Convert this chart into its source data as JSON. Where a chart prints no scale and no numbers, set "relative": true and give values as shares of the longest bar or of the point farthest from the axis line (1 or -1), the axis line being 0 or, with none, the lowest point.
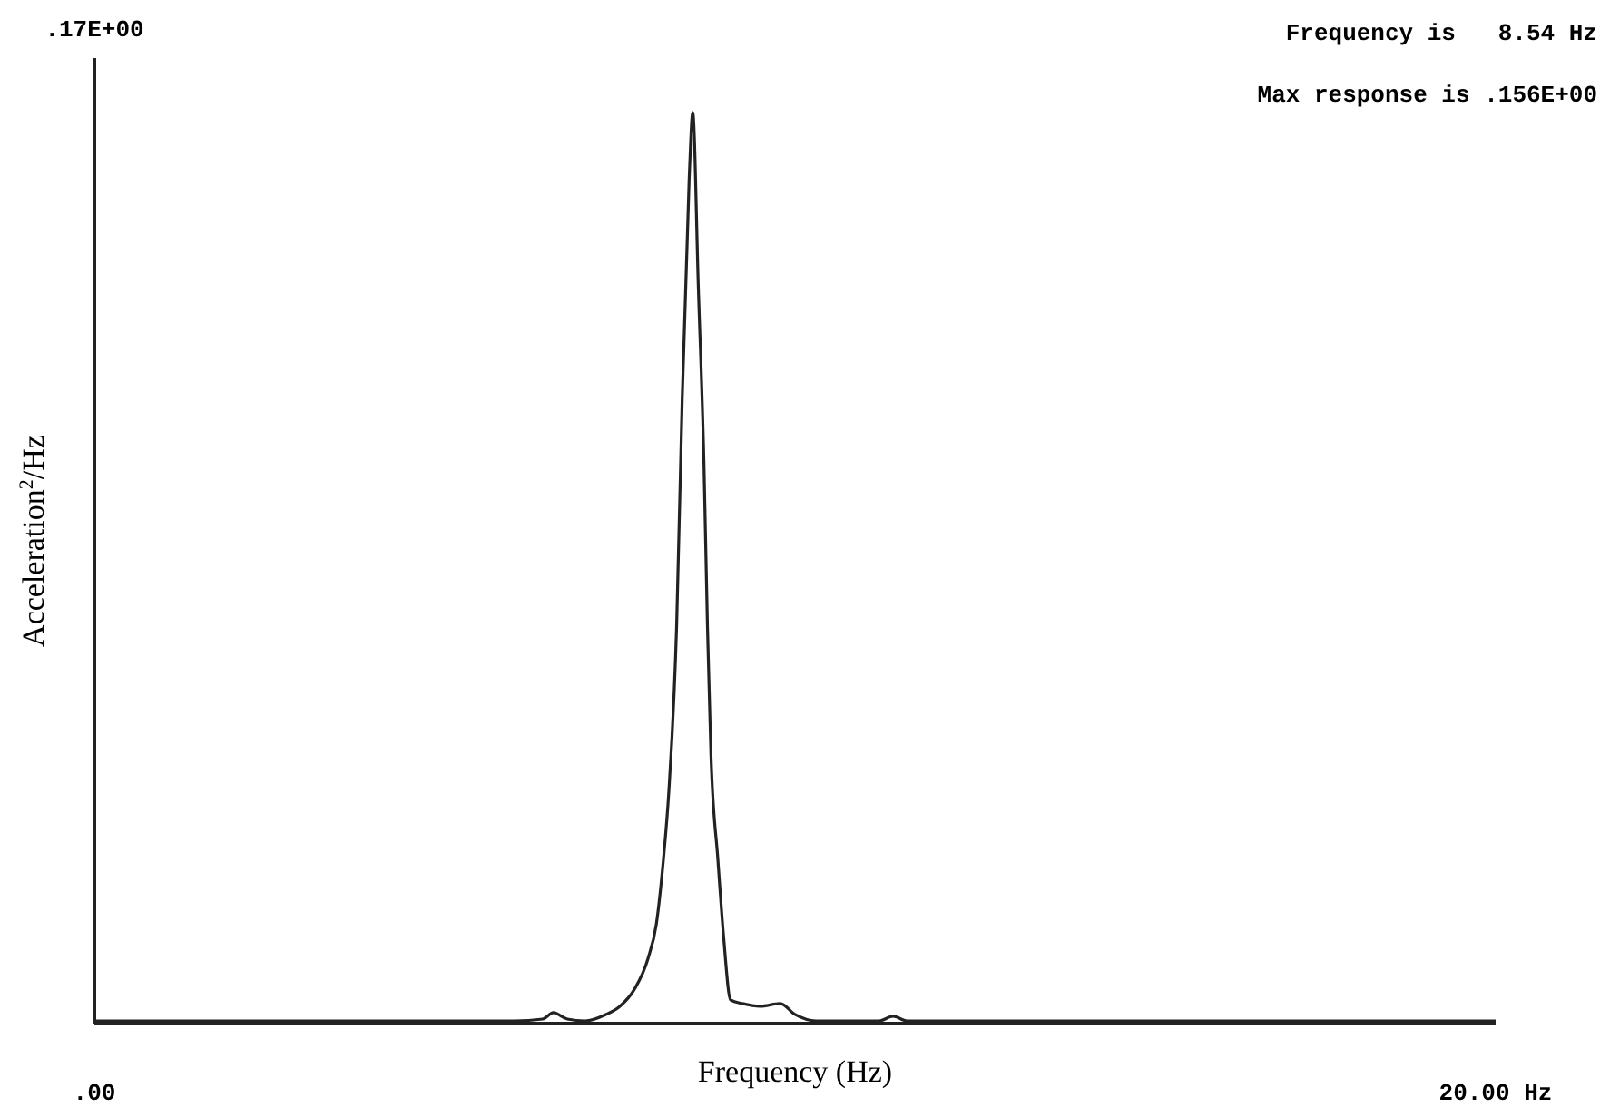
{
  "chart_data": {
    "type": "line",
    "relative": true,
    "xlabel": "Frequency (Hz)",
    "ylabel": "Acceleration$^{2}$/Hz",
    "annotations": [
      ".17E+00",
      "Frequency is   8.54 Hz",
      "Max response is .156E+00"
    ],
    "xlim": [
      0,
      20
    ],
    "xticks": [
      {
        "value": 0,
        "label": ".00"
      },
      {
        "value": 20,
        "label": "20.00 Hz"
      }
    ],
    "marker": "none",
    "line_style": "solid",
    "series": [
      {
        "color": "#222222",
        "x": [
          0,
          3,
          6,
          6.4,
          6.55,
          6.75,
          7.0,
          7.3,
          7.5,
          7.71,
          7.9,
          8.02,
          8.12,
          8.2,
          8.31,
          8.39,
          8.49,
          8.54,
          8.62,
          8.7,
          8.75,
          8.8,
          8.9,
          8.98,
          9.08,
          9.25,
          9.5,
          9.79,
          10.0,
          10.3,
          11.0,
          11.2,
          11.4,
          11.6,
          14,
          17,
          20
        ],
        "values": [
          0.003,
          0.003,
          0.003,
          0.005,
          0.012,
          0.005,
          0.003,
          0.01,
          0.019,
          0.038,
          0.071,
          0.109,
          0.179,
          0.256,
          0.436,
          0.686,
          0.929,
          1,
          0.808,
          0.615,
          0.436,
          0.295,
          0.179,
          0.096,
          0.026,
          0.022,
          0.019,
          0.022,
          0.01,
          0.003,
          0.003,
          0.003,
          0.008,
          0.003,
          0.003,
          0.003,
          0.003
        ]
      }
    ]
  }
}
